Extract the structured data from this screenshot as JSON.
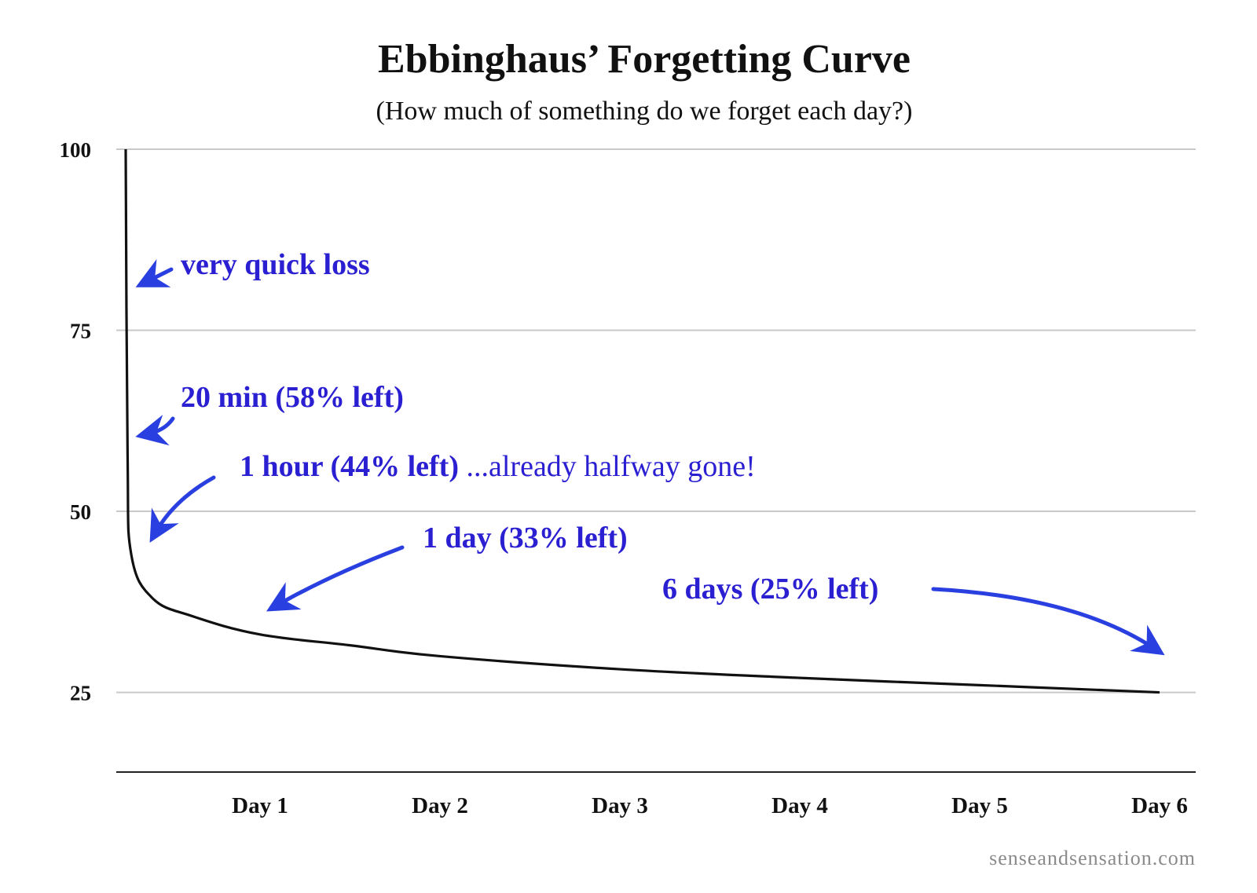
{
  "chart_data": {
    "type": "line",
    "title": "Ebbinghaus’ Forgetting Curve",
    "subtitle": "(How much of something do we forget each day?)",
    "xlabel": "",
    "ylabel": "",
    "x_unit": "days",
    "xlim": [
      0,
      6.1
    ],
    "ylim": [
      14,
      100
    ],
    "y_ticks": [
      100,
      75,
      50,
      25
    ],
    "x_ticks": [
      {
        "value": 1,
        "label": "Day 1"
      },
      {
        "value": 2,
        "label": "Day 2"
      },
      {
        "value": 3,
        "label": "Day 3"
      },
      {
        "value": 4,
        "label": "Day 4"
      },
      {
        "value": 5,
        "label": "Day 5"
      },
      {
        "value": 6,
        "label": "Day 6"
      }
    ],
    "grid": true,
    "series": [
      {
        "x": [
          0,
          0.0139,
          0.0417,
          0.2,
          0.5,
          1,
          1.5,
          2,
          3,
          4,
          5,
          6
        ],
        "y": [
          100,
          58,
          44,
          38,
          35.5,
          33,
          31.5,
          30,
          28.2,
          27,
          26,
          25
        ]
      }
    ],
    "annotations": [
      {
        "id": "quick",
        "bold": "very quick loss",
        "light": "",
        "color": "#2a1fd1"
      },
      {
        "id": "min20",
        "bold": "20 min (58% left)",
        "light": "",
        "color": "#2a1fd1"
      },
      {
        "id": "hour1",
        "bold": "1 hour (44% left)",
        "light": " ...already halfway gone!",
        "color": "#2a1fd1"
      },
      {
        "id": "day1",
        "bold": "1 day (33% left)",
        "light": "",
        "color": "#2a1fd1"
      },
      {
        "id": "day6",
        "bold": "6 days (25% left)",
        "light": "",
        "color": "#2a1fd1"
      }
    ]
  },
  "credit": "senseandsensation.com"
}
